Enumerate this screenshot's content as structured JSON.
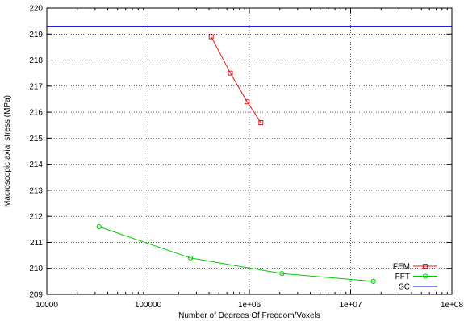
{
  "chart_data": {
    "type": "line",
    "xlabel": "Number of Degrees Of Freedom/Voxels",
    "ylabel": "Macroscopic axial stress (MPa)",
    "xscale": "log",
    "xlim": [
      10000,
      100000000
    ],
    "ylim": [
      209,
      220
    ],
    "x_ticks": [
      10000,
      100000,
      1000000,
      10000000,
      100000000
    ],
    "x_tick_labels": [
      "10000",
      "100000",
      "1e+06",
      "1e+07",
      "1e+08"
    ],
    "y_ticks": [
      209,
      210,
      211,
      212,
      213,
      214,
      215,
      216,
      217,
      218,
      219,
      220
    ],
    "y_tick_labels": [
      "209",
      "210",
      "211",
      "212",
      "213",
      "214",
      "215",
      "216",
      "217",
      "218",
      "219",
      "220"
    ],
    "grid": true,
    "legend_position": "bottom-right",
    "series": [
      {
        "name": "FEM",
        "color": "#e31a1c",
        "marker": "square",
        "x": [
          420000,
          650000,
          950000,
          1300000
        ],
        "y": [
          218.9,
          217.5,
          216.4,
          215.6
        ]
      },
      {
        "name": "FFT",
        "color": "#00cc00",
        "marker": "circle",
        "x": [
          32768,
          262144,
          2097152,
          16777216
        ],
        "y": [
          211.6,
          210.4,
          209.8,
          209.5
        ]
      },
      {
        "name": "SC",
        "color": "#0000cc",
        "marker": "none",
        "x": [
          10000,
          100000000
        ],
        "y": [
          219.3,
          219.3
        ]
      }
    ]
  }
}
